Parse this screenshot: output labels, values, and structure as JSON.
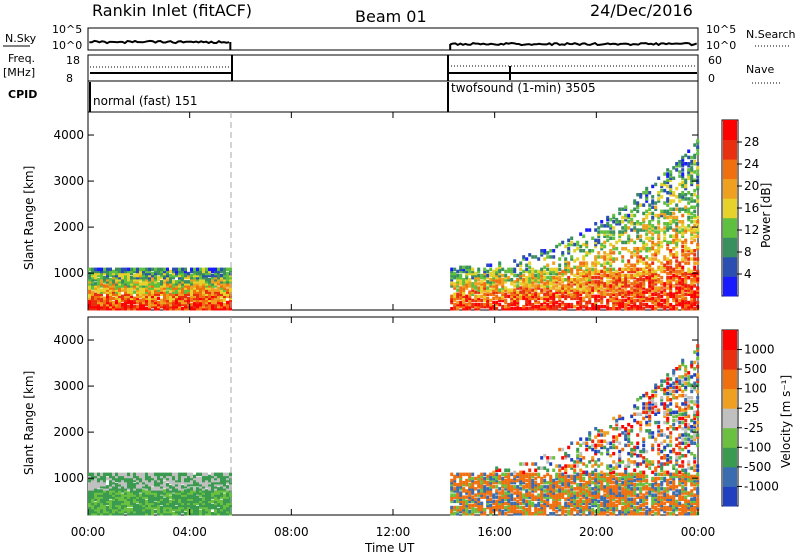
{
  "header": {
    "station": "Rankin Inlet (fitACF)",
    "beam": "Beam 01",
    "date": "24/Dec/2016"
  },
  "top_panels": {
    "nsky_label": "N.Sky",
    "nsky_ticks": [
      "10^5",
      "10^0"
    ],
    "nsearch_label": "N.Search",
    "nsearch_ticks": [
      "10^5",
      "10^0"
    ],
    "freq_label_line1": "Freq.",
    "freq_label_line2": "[MHz]",
    "freq_ticks": [
      "18",
      "8"
    ],
    "nave_label": "Nave",
    "nave_ticks": [
      "60",
      "0"
    ],
    "cpid_label": "CPID",
    "cpid_segments": [
      {
        "label": "normal (fast) 151",
        "start_hour": 0,
        "end_hour": 5.6
      },
      {
        "label": "twofsound (1-min) 3505",
        "start_hour": 14.25,
        "end_hour": 24
      }
    ]
  },
  "colors": {
    "power_scale": [
      "#1a1aff",
      "#2a4fb0",
      "#3a8f5f",
      "#5fbf3f",
      "#e6d22a",
      "#f0a020",
      "#f07010",
      "#e83010",
      "#ff0000"
    ],
    "velocity_scale": [
      "#2040c0",
      "#3a6db0",
      "#3a9a50",
      "#6cc040",
      "#c0c0c0",
      "#f0a020",
      "#f07010",
      "#e83010",
      "#ff0000"
    ]
  },
  "chart_data": [
    {
      "type": "heatmap",
      "quantity": "power",
      "ylabel": "Slant Range [km]",
      "xlabel": "Time UT",
      "x_ticks": [
        "00:00",
        "04:00",
        "08:00",
        "12:00",
        "16:00",
        "20:00",
        "00:00"
      ],
      "xlim_hours": [
        0,
        24
      ],
      "y_ticks": [
        1000,
        2000,
        3000,
        4000
      ],
      "ylim_km": [
        200,
        4500
      ],
      "colorbar_label": "Power [dB]",
      "colorbar_ticks": [
        "28",
        "24",
        "20",
        "16",
        "12",
        "8",
        "4"
      ],
      "colorbar_range": [
        0,
        30
      ],
      "data_coverage": [
        {
          "start_hour": 0.0,
          "end_hour": 5.6,
          "range_km": [
            200,
            1100
          ]
        },
        {
          "start_hour": 14.25,
          "end_hour": 24.0,
          "range_km": [
            200,
            3900
          ]
        }
      ]
    },
    {
      "type": "heatmap",
      "quantity": "velocity",
      "ylabel": "Slant Range [km]",
      "xlabel": "Time UT",
      "x_ticks": [
        "00:00",
        "04:00",
        "08:00",
        "12:00",
        "16:00",
        "20:00",
        "00:00"
      ],
      "xlim_hours": [
        0,
        24
      ],
      "y_ticks": [
        1000,
        2000,
        3000,
        4000
      ],
      "ylim_km": [
        200,
        4500
      ],
      "colorbar_label": "Velocity [m s⁻¹]",
      "colorbar_ticks": [
        "1000",
        "500",
        "100",
        "25",
        "-25",
        "-100",
        "-500",
        "-1000"
      ],
      "data_coverage": [
        {
          "start_hour": 0.0,
          "end_hour": 5.6,
          "range_km": [
            200,
            1100
          ]
        },
        {
          "start_hour": 14.25,
          "end_hour": 24.0,
          "range_km": [
            200,
            3900
          ]
        }
      ]
    }
  ],
  "xaxis": {
    "label": "Time UT",
    "ticks": [
      "00:00",
      "04:00",
      "08:00",
      "12:00",
      "16:00",
      "20:00",
      "00:00"
    ]
  }
}
